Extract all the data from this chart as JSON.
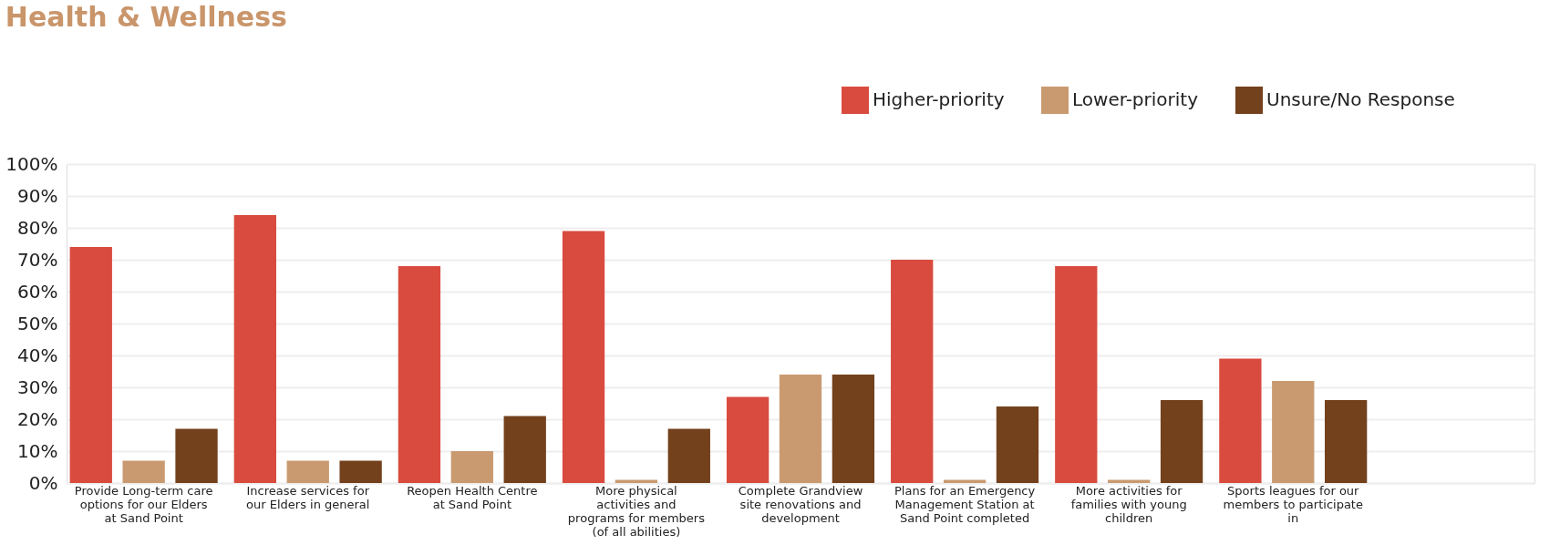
{
  "chart_data": {
    "type": "bar",
    "title": "Health & Wellness",
    "categories": [
      "Provide Long-term care options for our Elders at Sand Point",
      "Increase services for our Elders in general",
      "Reopen Health Centre at Sand Point",
      "More physical activities and programs for members (of all abilities)",
      "Complete Grandview site renovations and development",
      "Plans for an Emergency Management Station at Sand Point completed",
      "More activities for families with young children",
      "Sports leagues for our members to participate in",
      null
    ],
    "series": [
      {
        "name": "Higher-priority",
        "color": "#d94b3f",
        "values": [
          74,
          84,
          68,
          79,
          27,
          70,
          68,
          39,
          null
        ]
      },
      {
        "name": "Lower-priority",
        "color": "#c99a70",
        "values": [
          7,
          7,
          10,
          1,
          34,
          1,
          1,
          32,
          null
        ]
      },
      {
        "name": "Unsure/No Response",
        "color": "#73411c",
        "values": [
          17,
          7,
          21,
          17,
          34,
          24,
          26,
          26,
          null
        ]
      }
    ],
    "ylim": [
      0,
      100
    ],
    "yticks": [
      {
        "value": 0,
        "label": "0%"
      },
      {
        "value": 10,
        "label": "10%"
      },
      {
        "value": 20,
        "label": "20%"
      },
      {
        "value": 30,
        "label": "30%"
      },
      {
        "value": 40,
        "label": "40%"
      },
      {
        "value": 50,
        "label": "50%"
      },
      {
        "value": 60,
        "label": "60%"
      },
      {
        "value": 70,
        "label": "70%"
      },
      {
        "value": 80,
        "label": "80%"
      },
      {
        "value": 90,
        "label": "90%"
      },
      {
        "value": 100,
        "label": "100%"
      }
    ],
    "grid": "y",
    "legend": "top right"
  }
}
